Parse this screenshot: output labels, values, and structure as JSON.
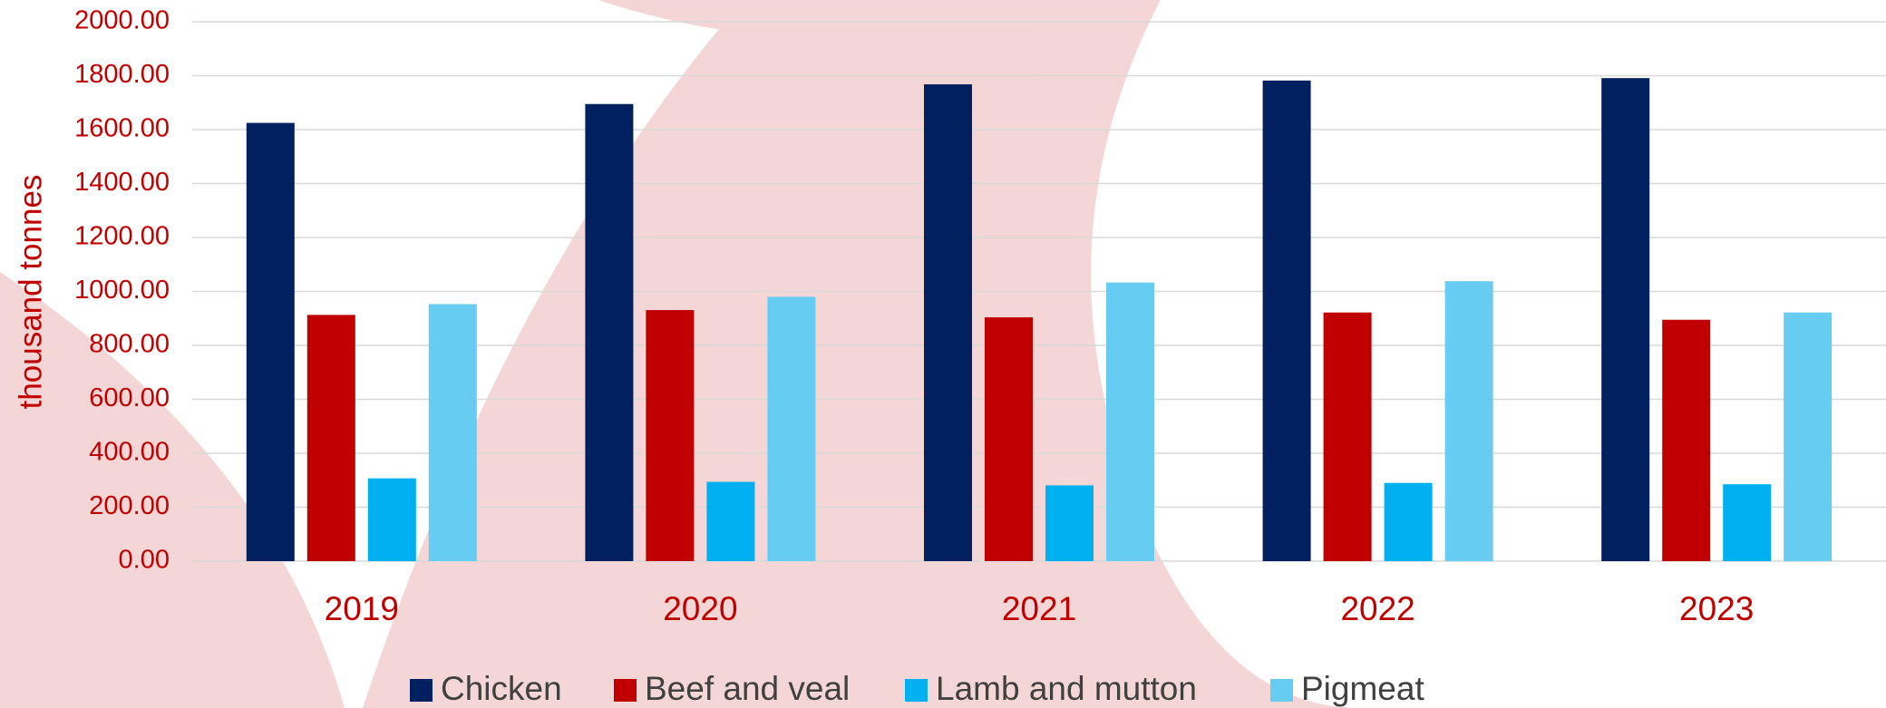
{
  "chart_data": {
    "type": "bar",
    "y_axis_label": "thousand tonnes",
    "categories": [
      "2019",
      "2020",
      "2021",
      "2022",
      "2023"
    ],
    "series": [
      {
        "name": "Chicken",
        "color": "#002060",
        "values": [
          1625,
          1695,
          1768,
          1782,
          1791
        ]
      },
      {
        "name": "Beef and veal",
        "color": "#c00000",
        "values": [
          913,
          931,
          904,
          922,
          895
        ]
      },
      {
        "name": "Lamb and mutton",
        "color": "#00b0f0",
        "values": [
          307,
          294,
          281,
          290,
          285
        ]
      },
      {
        "name": "Pigmeat",
        "color": "#66ccf2",
        "values": [
          953,
          980,
          1033,
          1038,
          922
        ]
      }
    ],
    "ylim": [
      0,
      2000
    ],
    "yticks": [
      {
        "value": 0,
        "label": "0.00"
      },
      {
        "value": 200,
        "label": "200.00"
      },
      {
        "value": 400,
        "label": "400.00"
      },
      {
        "value": 600,
        "label": "600.00"
      },
      {
        "value": 800,
        "label": "800.00"
      },
      {
        "value": 1000,
        "label": "1000.00"
      },
      {
        "value": 1200,
        "label": "1200.00"
      },
      {
        "value": 1400,
        "label": "1400.00"
      },
      {
        "value": 1600,
        "label": "1600.00"
      },
      {
        "value": 1800,
        "label": "1800.00"
      },
      {
        "value": 2000,
        "label": "2000.00"
      }
    ],
    "grid": true,
    "legend": "bottom"
  }
}
